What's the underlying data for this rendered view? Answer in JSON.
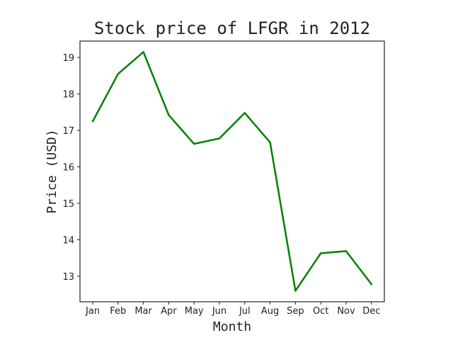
{
  "chart_data": {
    "type": "line",
    "title": "Stock price of LFGR in 2012",
    "xlabel": "Month",
    "ylabel": "Price (USD)",
    "categories": [
      "Jan",
      "Feb",
      "Mar",
      "Apr",
      "May",
      "Jun",
      "Jul",
      "Aug",
      "Sep",
      "Oct",
      "Nov",
      "Dec"
    ],
    "series": [
      {
        "name": "LFGR",
        "color": "#008000",
        "values": [
          17.25,
          18.55,
          19.15,
          17.42,
          16.63,
          16.78,
          17.48,
          16.67,
          12.6,
          13.63,
          13.69,
          12.78
        ]
      }
    ],
    "ylim": [
      12.3,
      19.45
    ],
    "yticks": [
      13,
      14,
      15,
      16,
      17,
      18,
      19
    ],
    "grid": false,
    "legend": "none"
  }
}
